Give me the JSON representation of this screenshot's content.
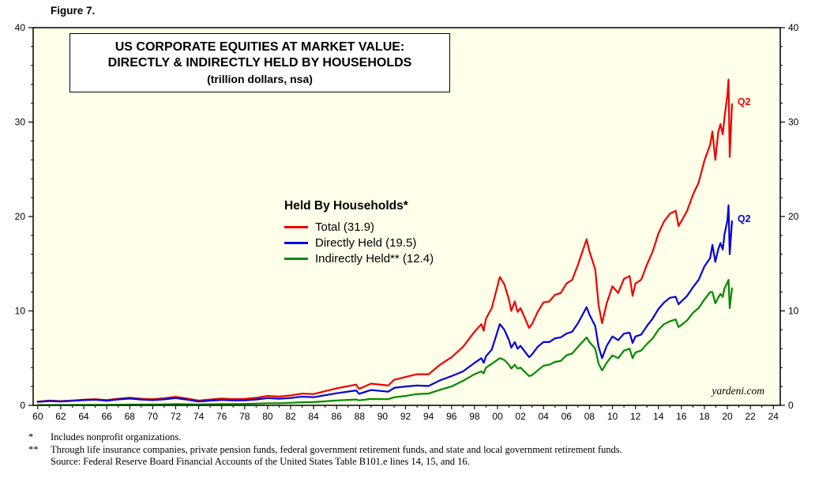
{
  "figure_label": "Figure 7.",
  "watermark": "yardeni.com",
  "footnotes": [
    {
      "marker": "*",
      "text": "Includes nonprofit organizations."
    },
    {
      "marker": "**",
      "text": "Through life insurance companies, private pension funds, federal government retirement funds, and state and local government retirement funds."
    },
    {
      "marker": "",
      "text": "Source: Federal Reserve Board Financial Accounts of the United States Table B101.e lines 14, 15, and 16."
    }
  ],
  "chart_data": {
    "type": "line",
    "title_lines": [
      "US CORPORATE EQUITIES AT MARKET VALUE:",
      "DIRECTLY & INDIRECTLY HELD BY HOUSEHOLDS",
      "(trillion dollars, nsa)"
    ],
    "legend": {
      "header": "Held By Households*",
      "position": "center-left of plot"
    },
    "grid": false,
    "plot_bg": "#FFFFEA",
    "axis_color": "#000000",
    "xlim": [
      1959.6,
      2024.6
    ],
    "ylim": [
      0,
      40
    ],
    "y_ticks": [
      0,
      10,
      20,
      30,
      40
    ],
    "y_minor_step": 2,
    "x_tick_years": [
      1960,
      1962,
      1964,
      1966,
      1968,
      1970,
      1972,
      1974,
      1976,
      1978,
      1980,
      1982,
      1984,
      1986,
      1988,
      1990,
      1992,
      1994,
      1996,
      1998,
      2000,
      2002,
      2004,
      2006,
      2008,
      2010,
      2012,
      2014,
      2016,
      2018,
      2020,
      2022,
      2024
    ],
    "x_ticklabels": [
      "60",
      "62",
      "64",
      "66",
      "68",
      "70",
      "72",
      "74",
      "76",
      "78",
      "80",
      "82",
      "84",
      "86",
      "88",
      "90",
      "92",
      "94",
      "96",
      "98",
      "00",
      "02",
      "04",
      "06",
      "08",
      "10",
      "12",
      "14",
      "16",
      "18",
      "20",
      "22",
      "24"
    ],
    "x": [
      1960,
      1961,
      1962,
      1963,
      1964,
      1965,
      1966,
      1967,
      1968,
      1969,
      1970,
      1971,
      1972,
      1973,
      1974,
      1975,
      1976,
      1977,
      1978,
      1979,
      1980,
      1981,
      1982,
      1983,
      1984,
      1985,
      1986,
      1987.7,
      1987.95,
      1989,
      1990.5,
      1991,
      1992,
      1993,
      1994,
      1995,
      1996,
      1997,
      1998,
      1998.6,
      1998.8,
      1999,
      1999.5,
      2000.2,
      2000.6,
      2001,
      2001.2,
      2001.5,
      2001.75,
      2002,
      2002.75,
      2003,
      2003.5,
      2004,
      2004.5,
      2005,
      2005.5,
      2006,
      2006.5,
      2007,
      2007.75,
      2008,
      2008.5,
      2008.8,
      2009.1,
      2009.5,
      2010,
      2010.5,
      2011,
      2011.5,
      2011.75,
      2012,
      2012.5,
      2013,
      2013.5,
      2014,
      2014.5,
      2015,
      2015.5,
      2015.75,
      2016,
      2016.5,
      2017,
      2017.5,
      2018,
      2018.5,
      2018.7,
      2018.95,
      2019.2,
      2019.4,
      2019.6,
      2019.75,
      2020.0,
      2020.1,
      2020.2,
      2020.4
    ],
    "series": [
      {
        "name": "Total",
        "legend_label": "Total (31.9)",
        "latest_value": 31.9,
        "color": "#EE0000",
        "end_label": "Q2",
        "values": [
          0.4,
          0.5,
          0.45,
          0.52,
          0.6,
          0.65,
          0.55,
          0.7,
          0.8,
          0.7,
          0.65,
          0.75,
          0.9,
          0.72,
          0.5,
          0.62,
          0.72,
          0.66,
          0.68,
          0.8,
          1.0,
          0.93,
          1.05,
          1.25,
          1.2,
          1.5,
          1.8,
          2.2,
          1.75,
          2.3,
          2.1,
          2.7,
          3.0,
          3.3,
          3.3,
          4.3,
          5.1,
          6.2,
          7.8,
          8.6,
          7.9,
          9.2,
          10.3,
          13.6,
          12.8,
          11.2,
          10.0,
          11.0,
          9.9,
          10.3,
          8.2,
          8.6,
          9.9,
          10.9,
          11.0,
          11.7,
          11.9,
          12.9,
          13.3,
          14.9,
          17.6,
          16.3,
          14.4,
          10.6,
          8.7,
          10.8,
          12.6,
          11.9,
          13.4,
          13.7,
          11.6,
          12.9,
          13.3,
          14.9,
          16.3,
          18.2,
          19.5,
          20.3,
          20.6,
          19.0,
          19.5,
          20.6,
          22.3,
          23.6,
          25.9,
          27.6,
          29.0,
          26.0,
          28.9,
          29.8,
          28.7,
          30.5,
          32.9,
          34.5,
          26.3,
          31.9
        ]
      },
      {
        "name": "Directly Held",
        "legend_label": "Directly Held (19.5)",
        "latest_value": 19.5,
        "color": "#0000DD",
        "end_label": "Q2",
        "values": [
          0.37,
          0.46,
          0.41,
          0.48,
          0.55,
          0.59,
          0.49,
          0.63,
          0.72,
          0.62,
          0.55,
          0.64,
          0.77,
          0.6,
          0.4,
          0.5,
          0.58,
          0.52,
          0.53,
          0.62,
          0.77,
          0.7,
          0.78,
          0.92,
          0.86,
          1.07,
          1.28,
          1.58,
          1.22,
          1.62,
          1.45,
          1.85,
          2.0,
          2.1,
          2.05,
          2.65,
          3.1,
          3.6,
          4.5,
          5.0,
          4.5,
          5.2,
          5.9,
          8.6,
          8.0,
          6.9,
          6.1,
          6.7,
          6.0,
          6.3,
          5.1,
          5.4,
          6.2,
          6.7,
          6.7,
          7.1,
          7.2,
          7.6,
          7.8,
          8.7,
          10.4,
          9.6,
          8.4,
          6.2,
          5.0,
          6.3,
          7.3,
          6.9,
          7.6,
          7.7,
          6.6,
          7.3,
          7.5,
          8.4,
          9.2,
          10.2,
          10.9,
          11.4,
          11.5,
          10.7,
          11.0,
          11.6,
          12.5,
          13.3,
          14.7,
          15.6,
          17.0,
          15.2,
          16.5,
          17.2,
          16.5,
          18.1,
          19.6,
          21.2,
          16.0,
          19.5
        ]
      },
      {
        "name": "Indirectly Held",
        "legend_label": "Indirectly Held** (12.4)",
        "latest_value": 12.4,
        "color": "#008A00",
        "end_label": "",
        "values": [
          0.03,
          0.04,
          0.04,
          0.04,
          0.05,
          0.06,
          0.06,
          0.07,
          0.08,
          0.08,
          0.1,
          0.11,
          0.13,
          0.12,
          0.1,
          0.12,
          0.14,
          0.14,
          0.15,
          0.18,
          0.23,
          0.23,
          0.27,
          0.33,
          0.34,
          0.43,
          0.52,
          0.62,
          0.53,
          0.68,
          0.65,
          0.85,
          1.0,
          1.2,
          1.25,
          1.65,
          2.0,
          2.6,
          3.3,
          3.6,
          3.4,
          4.0,
          4.4,
          5.0,
          4.8,
          4.3,
          3.9,
          4.3,
          3.9,
          4.0,
          3.1,
          3.2,
          3.7,
          4.2,
          4.3,
          4.6,
          4.7,
          5.3,
          5.5,
          6.2,
          7.2,
          6.7,
          6.0,
          4.4,
          3.7,
          4.5,
          5.3,
          5.0,
          5.8,
          6.0,
          5.0,
          5.6,
          5.8,
          6.5,
          7.1,
          8.0,
          8.6,
          8.9,
          9.1,
          8.3,
          8.5,
          9.0,
          9.8,
          10.3,
          11.2,
          12.0,
          12.0,
          10.8,
          11.4,
          11.8,
          11.5,
          12.4,
          13.0,
          13.3,
          10.3,
          12.4
        ]
      }
    ]
  }
}
